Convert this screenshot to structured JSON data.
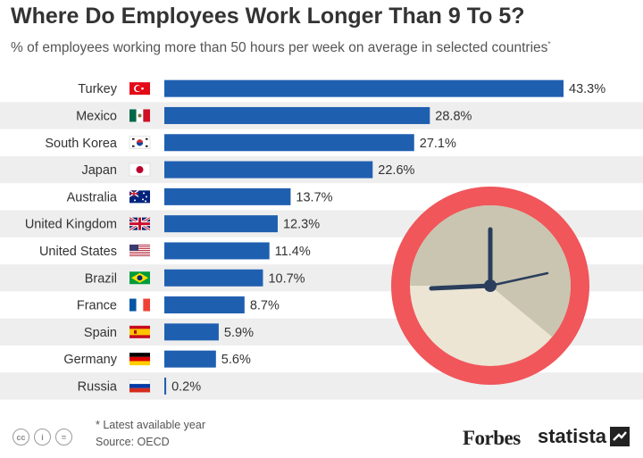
{
  "header": {
    "title": "Where Do Employees Work Longer Than 9 To 5?",
    "subtitle": "% of employees working more than 50 hours per week on average in selected countries",
    "subtitle_mark": "*"
  },
  "footer": {
    "note": "* Latest available year",
    "source": "Source: OECD",
    "cc_icons": [
      "cc-icon",
      "by-icon",
      "nd-icon"
    ],
    "cc_glyphs": [
      "cc",
      "i",
      "="
    ],
    "brand_forbes": "Forbes",
    "brand_statista": "statista"
  },
  "colors": {
    "bar": "#1f5fb0",
    "stripe": "#eeeeee",
    "clock_ring": "#f0565a",
    "clock_face": "#ece5d3",
    "clock_shade": "#c9c5b1",
    "clock_hands": "#2a3e5c"
  },
  "chart_data": {
    "type": "bar",
    "orientation": "horizontal",
    "categories": [
      "Turkey",
      "Mexico",
      "South Korea",
      "Japan",
      "Australia",
      "United Kingdom",
      "United States",
      "Brazil",
      "France",
      "Spain",
      "Germany",
      "Russia"
    ],
    "flags": [
      "turkey-flag-icon",
      "mexico-flag-icon",
      "south-korea-flag-icon",
      "japan-flag-icon",
      "australia-flag-icon",
      "united-kingdom-flag-icon",
      "united-states-flag-icon",
      "brazil-flag-icon",
      "france-flag-icon",
      "spain-flag-icon",
      "germany-flag-icon",
      "russia-flag-icon"
    ],
    "values": [
      43.3,
      28.8,
      27.1,
      22.6,
      13.7,
      12.3,
      11.4,
      10.7,
      8.7,
      5.9,
      5.6,
      0.2
    ],
    "labels": [
      "43.3%",
      "28.8%",
      "27.1%",
      "22.6%",
      "13.7%",
      "12.3%",
      "11.4%",
      "10.7%",
      "8.7%",
      "5.9%",
      "5.6%",
      "0.2%"
    ],
    "xlim": [
      0,
      45
    ],
    "grid": false,
    "legend": "none"
  }
}
